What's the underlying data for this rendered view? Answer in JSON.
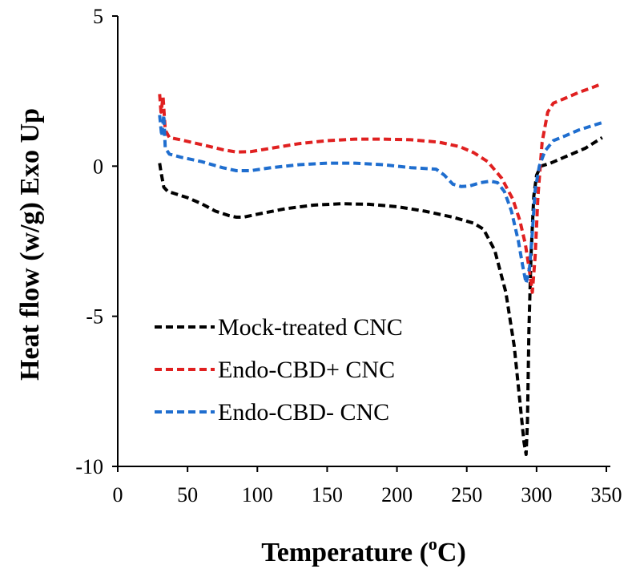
{
  "chart_data": {
    "type": "line",
    "title": "",
    "xlabel": "Temperature (",
    "xlabel_sup": "o",
    "xlabel_unit": "C)",
    "ylabel": "Heat flow (w/g) Exo Up",
    "xlim": [
      0,
      350
    ],
    "ylim": [
      -10,
      5
    ],
    "x_ticks": [
      "0",
      "50",
      "100",
      "150",
      "200",
      "250",
      "300",
      "350"
    ],
    "y_ticks": [
      "5",
      "0",
      "-5",
      "-10"
    ],
    "grid": false,
    "legend_position": "bottom-left",
    "series": [
      {
        "name": "Mock-treated CNC",
        "color": "#000000",
        "points": [
          [
            30,
            0.1
          ],
          [
            31,
            -0.2
          ],
          [
            33,
            -0.7
          ],
          [
            36,
            -0.85
          ],
          [
            40,
            -0.9
          ],
          [
            50,
            -1.05
          ],
          [
            60,
            -1.25
          ],
          [
            70,
            -1.5
          ],
          [
            80,
            -1.65
          ],
          [
            85,
            -1.7
          ],
          [
            90,
            -1.7
          ],
          [
            100,
            -1.6
          ],
          [
            120,
            -1.42
          ],
          [
            140,
            -1.3
          ],
          [
            160,
            -1.25
          ],
          [
            180,
            -1.27
          ],
          [
            200,
            -1.35
          ],
          [
            220,
            -1.5
          ],
          [
            240,
            -1.7
          ],
          [
            255,
            -1.9
          ],
          [
            262,
            -2.1
          ],
          [
            270,
            -2.8
          ],
          [
            278,
            -4.2
          ],
          [
            284,
            -6.0
          ],
          [
            288,
            -7.8
          ],
          [
            291,
            -9.2
          ],
          [
            292.5,
            -9.6
          ],
          [
            293.5,
            -8.5
          ],
          [
            294.5,
            -5.5
          ],
          [
            296,
            -3.0
          ],
          [
            298,
            -1.0
          ],
          [
            300,
            -0.3
          ],
          [
            303,
            0.0
          ],
          [
            310,
            0.1
          ],
          [
            320,
            0.3
          ],
          [
            335,
            0.6
          ],
          [
            347,
            0.95
          ]
        ]
      },
      {
        "name": "Endo-CBD+ CNC",
        "color": "#e02020",
        "points": [
          [
            30,
            2.4
          ],
          [
            31,
            1.8
          ],
          [
            32.5,
            2.3
          ],
          [
            34,
            1.2
          ],
          [
            37,
            0.95
          ],
          [
            45,
            0.88
          ],
          [
            60,
            0.72
          ],
          [
            75,
            0.55
          ],
          [
            85,
            0.47
          ],
          [
            95,
            0.48
          ],
          [
            110,
            0.6
          ],
          [
            130,
            0.75
          ],
          [
            150,
            0.85
          ],
          [
            170,
            0.9
          ],
          [
            190,
            0.9
          ],
          [
            210,
            0.88
          ],
          [
            230,
            0.8
          ],
          [
            245,
            0.65
          ],
          [
            255,
            0.45
          ],
          [
            265,
            0.15
          ],
          [
            275,
            -0.4
          ],
          [
            283,
            -1.1
          ],
          [
            288,
            -1.8
          ],
          [
            292,
            -2.6
          ],
          [
            295,
            -3.5
          ],
          [
            297,
            -4.2
          ],
          [
            299,
            -3.0
          ],
          [
            301,
            -1.0
          ],
          [
            304,
            0.8
          ],
          [
            308,
            1.8
          ],
          [
            312,
            2.1
          ],
          [
            320,
            2.25
          ],
          [
            330,
            2.45
          ],
          [
            340,
            2.62
          ],
          [
            347,
            2.75
          ]
        ]
      },
      {
        "name": "Endo-CBD- CNC",
        "color": "#1f6ecf",
        "points": [
          [
            30,
            1.7
          ],
          [
            31.5,
            1.0
          ],
          [
            33,
            1.7
          ],
          [
            34,
            0.6
          ],
          [
            37,
            0.4
          ],
          [
            45,
            0.3
          ],
          [
            60,
            0.15
          ],
          [
            75,
            -0.05
          ],
          [
            85,
            -0.15
          ],
          [
            95,
            -0.15
          ],
          [
            110,
            -0.05
          ],
          [
            130,
            0.05
          ],
          [
            150,
            0.1
          ],
          [
            170,
            0.1
          ],
          [
            190,
            0.05
          ],
          [
            210,
            -0.05
          ],
          [
            228,
            -0.1
          ],
          [
            234,
            -0.3
          ],
          [
            240,
            -0.6
          ],
          [
            246,
            -0.68
          ],
          [
            252,
            -0.66
          ],
          [
            260,
            -0.55
          ],
          [
            267,
            -0.5
          ],
          [
            272,
            -0.55
          ],
          [
            277,
            -0.85
          ],
          [
            282,
            -1.5
          ],
          [
            287,
            -2.5
          ],
          [
            290,
            -3.3
          ],
          [
            292.5,
            -3.9
          ],
          [
            295,
            -3.4
          ],
          [
            297,
            -2.2
          ],
          [
            299,
            -0.8
          ],
          [
            302,
            0.0
          ],
          [
            306,
            0.5
          ],
          [
            312,
            0.85
          ],
          [
            320,
            1.0
          ],
          [
            330,
            1.2
          ],
          [
            340,
            1.35
          ],
          [
            347,
            1.45
          ]
        ]
      }
    ]
  }
}
